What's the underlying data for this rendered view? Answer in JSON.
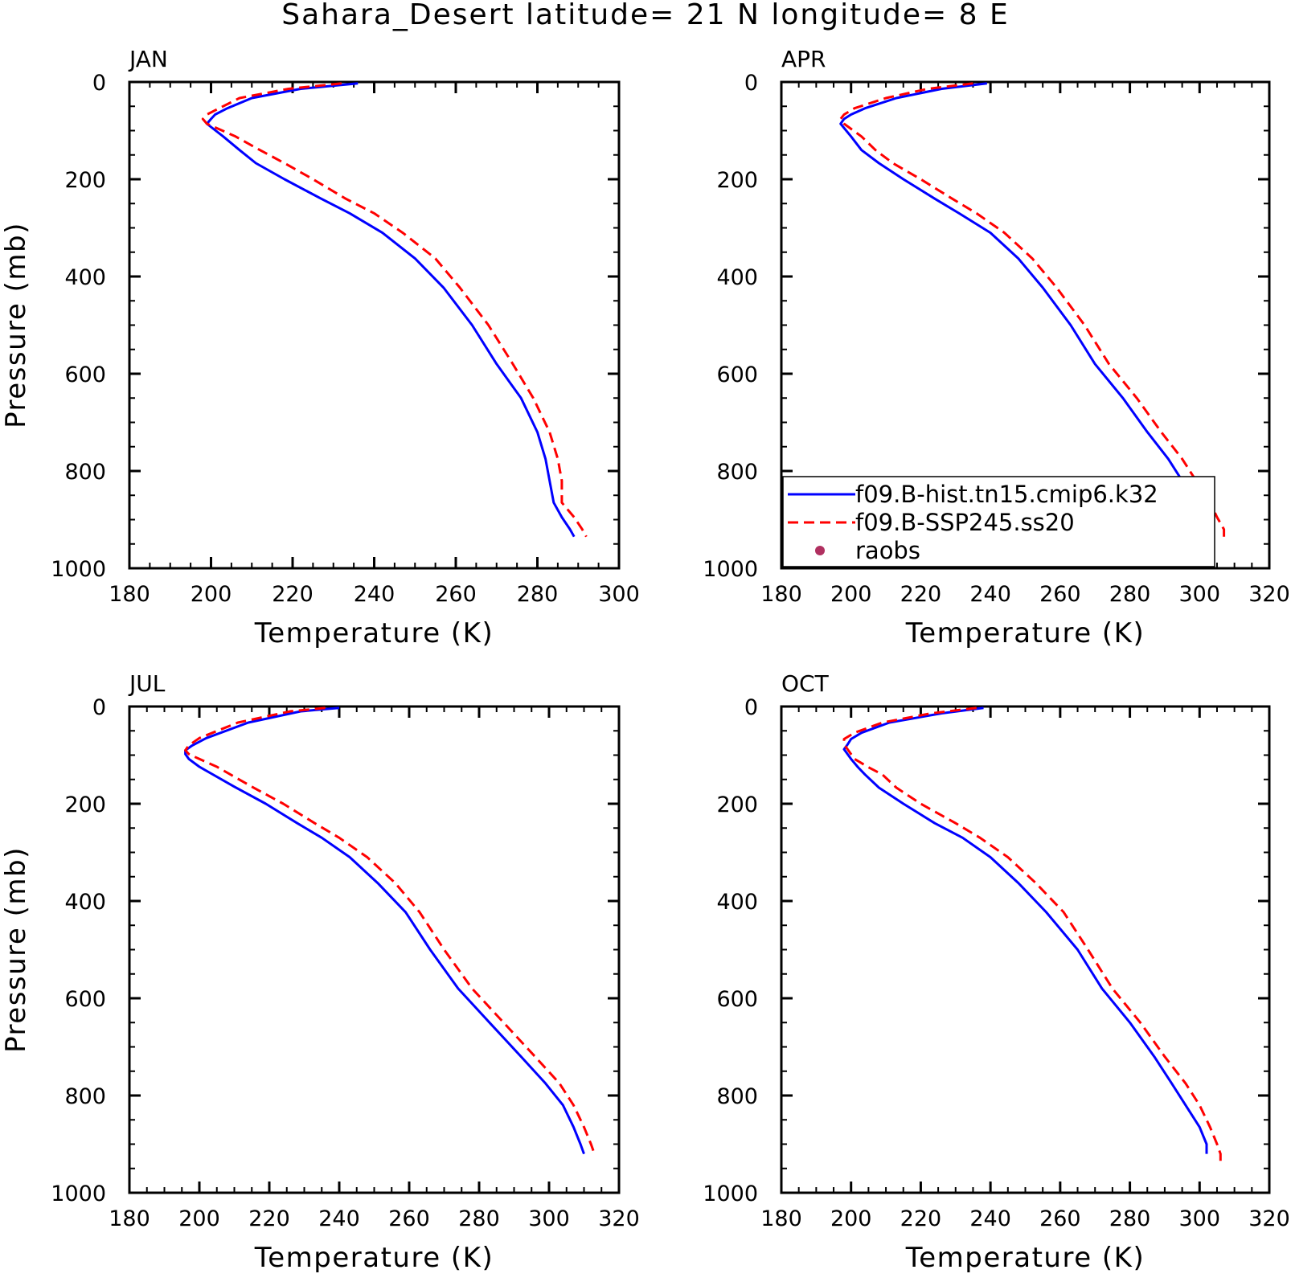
{
  "title": "Sahara_Desert  latitude= 21 N longitude= 8 E",
  "legend": {
    "placement": "inside-bottom of APR panel",
    "entries": [
      {
        "label": "f09.B-hist.tn15.cmip6.k32",
        "color": "#0000ff",
        "style": "solid"
      },
      {
        "label": "f09.B-SSP245.ss20",
        "color": "#ff0000",
        "style": "dashed"
      },
      {
        "label": "raobs",
        "color": "#b03060",
        "style": "dot"
      }
    ]
  },
  "chart_data": [
    {
      "type": "line",
      "panel": "JAN",
      "xlabel": "Temperature (K)",
      "ylabel": "Pressure (mb)",
      "xlim": [
        180,
        300
      ],
      "ylim": [
        1000,
        0
      ],
      "xticks": [
        "180",
        "200",
        "220",
        "240",
        "260",
        "280",
        "300"
      ],
      "yticks": [
        "0",
        "200",
        "400",
        "600",
        "800",
        "1000"
      ],
      "series": [
        {
          "name": "f09.B-hist.tn15.cmip6.k32",
          "color": "#0000ff",
          "style": "solid",
          "points": [
            [
              236,
              3
            ],
            [
              222,
              14
            ],
            [
              210,
              33
            ],
            [
              204,
              54
            ],
            [
              201,
              67
            ],
            [
              200,
              76
            ],
            [
              199,
              86
            ],
            [
              203,
              112
            ],
            [
              207,
              140
            ],
            [
              211,
              167
            ],
            [
              218,
              200
            ],
            [
              227,
              240
            ],
            [
              234,
              270
            ],
            [
              242,
              310
            ],
            [
              250,
              363
            ],
            [
              257,
              423
            ],
            [
              264,
              500
            ],
            [
              270,
              580
            ],
            [
              276,
              650
            ],
            [
              280,
              720
            ],
            [
              282,
              775
            ],
            [
              283,
              820
            ],
            [
              284,
              865
            ],
            [
              286,
              895
            ],
            [
              288,
              920
            ],
            [
              289,
              935
            ]
          ]
        },
        {
          "name": "f09.B-SSP245.ss20",
          "color": "#ff0000",
          "style": "dashed",
          "points": [
            [
              232,
              3
            ],
            [
              219,
              14
            ],
            [
              207,
              33
            ],
            [
              202,
              54
            ],
            [
              199,
              67
            ],
            [
              198,
              76
            ],
            [
              199,
              86
            ],
            [
              206,
              112
            ],
            [
              212,
              140
            ],
            [
              218,
              167
            ],
            [
              225,
              200
            ],
            [
              233,
              240
            ],
            [
              240,
              270
            ],
            [
              247,
              310
            ],
            [
              255,
              363
            ],
            [
              261,
              423
            ],
            [
              268,
              500
            ],
            [
              274,
              580
            ],
            [
              279,
              650
            ],
            [
              283,
              720
            ],
            [
              285,
              775
            ],
            [
              286,
              820
            ],
            [
              286,
              865
            ],
            [
              289,
              895
            ],
            [
              291,
              920
            ],
            [
              292,
              935
            ]
          ]
        }
      ]
    },
    {
      "type": "line",
      "panel": "APR",
      "xlabel": "Temperature (K)",
      "ylabel": "",
      "xlim": [
        180,
        320
      ],
      "ylim": [
        1000,
        0
      ],
      "xticks": [
        "180",
        "200",
        "220",
        "240",
        "260",
        "280",
        "300",
        "320"
      ],
      "yticks": [
        "0",
        "200",
        "400",
        "600",
        "800",
        "1000"
      ],
      "series": [
        {
          "name": "f09.B-hist.tn15.cmip6.k32",
          "color": "#0000ff",
          "style": "solid",
          "points": [
            [
              239,
              3
            ],
            [
              226,
              14
            ],
            [
              213,
              33
            ],
            [
              204,
              54
            ],
            [
              200,
              67
            ],
            [
              198,
              76
            ],
            [
              197,
              86
            ],
            [
              200,
              112
            ],
            [
              203,
              140
            ],
            [
              208,
              167
            ],
            [
              215,
              200
            ],
            [
              224,
              240
            ],
            [
              231,
              270
            ],
            [
              240,
              310
            ],
            [
              248,
              363
            ],
            [
              255,
              423
            ],
            [
              263,
              500
            ],
            [
              270,
              580
            ],
            [
              278,
              650
            ],
            [
              285,
              720
            ],
            [
              291,
              775
            ],
            [
              295,
              820
            ],
            [
              299,
              865
            ],
            [
              301,
              895
            ],
            [
              303,
              920
            ],
            [
              303,
              935
            ]
          ]
        },
        {
          "name": "f09.B-SSP245.ss20",
          "color": "#ff0000",
          "style": "dashed",
          "points": [
            [
              235,
              3
            ],
            [
              222,
              14
            ],
            [
              210,
              33
            ],
            [
              201,
              54
            ],
            [
              198,
              67
            ],
            [
              197,
              76
            ],
            [
              198,
              86
            ],
            [
              203,
              112
            ],
            [
              207,
              140
            ],
            [
              212,
              167
            ],
            [
              220,
              200
            ],
            [
              229,
              240
            ],
            [
              236,
              270
            ],
            [
              244,
              310
            ],
            [
              252,
              363
            ],
            [
              259,
              423
            ],
            [
              267,
              500
            ],
            [
              274,
              580
            ],
            [
              282,
              650
            ],
            [
              289,
              720
            ],
            [
              295,
              775
            ],
            [
              299,
              820
            ],
            [
              303,
              865
            ],
            [
              305,
              895
            ],
            [
              307,
              920
            ],
            [
              307,
              935
            ]
          ]
        }
      ]
    },
    {
      "type": "line",
      "panel": "JUL",
      "xlabel": "Temperature (K)",
      "ylabel": "Pressure (mb)",
      "xlim": [
        180,
        320
      ],
      "ylim": [
        1000,
        0
      ],
      "xticks": [
        "180",
        "200",
        "220",
        "240",
        "260",
        "280",
        "300",
        "320"
      ],
      "yticks": [
        "0",
        "200",
        "400",
        "600",
        "800",
        "1000"
      ],
      "series": [
        {
          "name": "f09.B-hist.tn15.cmip6.k32",
          "color": "#0000ff",
          "style": "solid",
          "points": [
            [
              240,
              3
            ],
            [
              229,
              10
            ],
            [
              214,
              33
            ],
            [
              202,
              65
            ],
            [
              198,
              80
            ],
            [
              196,
              90
            ],
            [
              196,
              98
            ],
            [
              197,
              108
            ],
            [
              200,
              124
            ],
            [
              210,
              165
            ],
            [
              219,
              200
            ],
            [
              228,
              240
            ],
            [
              235,
              270
            ],
            [
              243,
              310
            ],
            [
              251,
              363
            ],
            [
              259,
              423
            ],
            [
              266,
              500
            ],
            [
              274,
              580
            ],
            [
              283,
              650
            ],
            [
              292,
              720
            ],
            [
              299,
              775
            ],
            [
              304,
              820
            ],
            [
              307,
              865
            ],
            [
              309,
              900
            ],
            [
              310,
              920
            ]
          ]
        },
        {
          "name": "f09.B-SSP245.ss20",
          "color": "#ff0000",
          "style": "dashed",
          "points": [
            [
              236,
              3
            ],
            [
              226,
              10
            ],
            [
              211,
              33
            ],
            [
              200,
              65
            ],
            [
              197,
              80
            ],
            [
              196,
              90
            ],
            [
              197,
              98
            ],
            [
              200,
              108
            ],
            [
              205,
              124
            ],
            [
              215,
              165
            ],
            [
              224,
              200
            ],
            [
              233,
              240
            ],
            [
              240,
              270
            ],
            [
              248,
              310
            ],
            [
              256,
              363
            ],
            [
              263,
              423
            ],
            [
              270,
              500
            ],
            [
              278,
              580
            ],
            [
              287,
              650
            ],
            [
              296,
              720
            ],
            [
              303,
              775
            ],
            [
              307,
              820
            ],
            [
              310,
              865
            ],
            [
              312,
              900
            ],
            [
              313,
              920
            ]
          ]
        }
      ]
    },
    {
      "type": "line",
      "panel": "OCT",
      "xlabel": "Temperature (K)",
      "ylabel": "",
      "xlim": [
        180,
        320
      ],
      "ylim": [
        1000,
        0
      ],
      "xticks": [
        "180",
        "200",
        "220",
        "240",
        "260",
        "280",
        "300",
        "320"
      ],
      "yticks": [
        "0",
        "200",
        "400",
        "600",
        "800",
        "1000"
      ],
      "series": [
        {
          "name": "f09.B-hist.tn15.cmip6.k32",
          "color": "#0000ff",
          "style": "solid",
          "points": [
            [
              238,
              3
            ],
            [
              226,
              14
            ],
            [
              211,
              33
            ],
            [
              203,
              54
            ],
            [
              200,
              67
            ],
            [
              199,
              78
            ],
            [
              198,
              88
            ],
            [
              200,
              108
            ],
            [
              202,
              125
            ],
            [
              204,
              140
            ],
            [
              208,
              167
            ],
            [
              215,
              200
            ],
            [
              224,
              240
            ],
            [
              232,
              270
            ],
            [
              240,
              310
            ],
            [
              248,
              363
            ],
            [
              256,
              423
            ],
            [
              265,
              500
            ],
            [
              272,
              580
            ],
            [
              280,
              650
            ],
            [
              287,
              720
            ],
            [
              292,
              775
            ],
            [
              296,
              820
            ],
            [
              300,
              865
            ],
            [
              302,
              900
            ],
            [
              302,
              920
            ]
          ]
        },
        {
          "name": "f09.B-SSP245.ss20",
          "color": "#ff0000",
          "style": "dashed",
          "points": [
            [
              236,
              3
            ],
            [
              223,
              14
            ],
            [
              209,
              33
            ],
            [
              201,
              54
            ],
            [
              198,
              67
            ],
            [
              198,
              78
            ],
            [
              199,
              88
            ],
            [
              201,
              108
            ],
            [
              205,
              125
            ],
            [
              209,
              140
            ],
            [
              213,
              167
            ],
            [
              220,
              200
            ],
            [
              230,
              240
            ],
            [
              237,
              270
            ],
            [
              245,
              310
            ],
            [
              253,
              363
            ],
            [
              261,
              423
            ],
            [
              268,
              500
            ],
            [
              275,
              580
            ],
            [
              283,
              650
            ],
            [
              290,
              720
            ],
            [
              296,
              775
            ],
            [
              300,
              820
            ],
            [
              303,
              865
            ],
            [
              305,
              900
            ],
            [
              306,
              920
            ],
            [
              306,
              935
            ]
          ]
        }
      ]
    }
  ]
}
